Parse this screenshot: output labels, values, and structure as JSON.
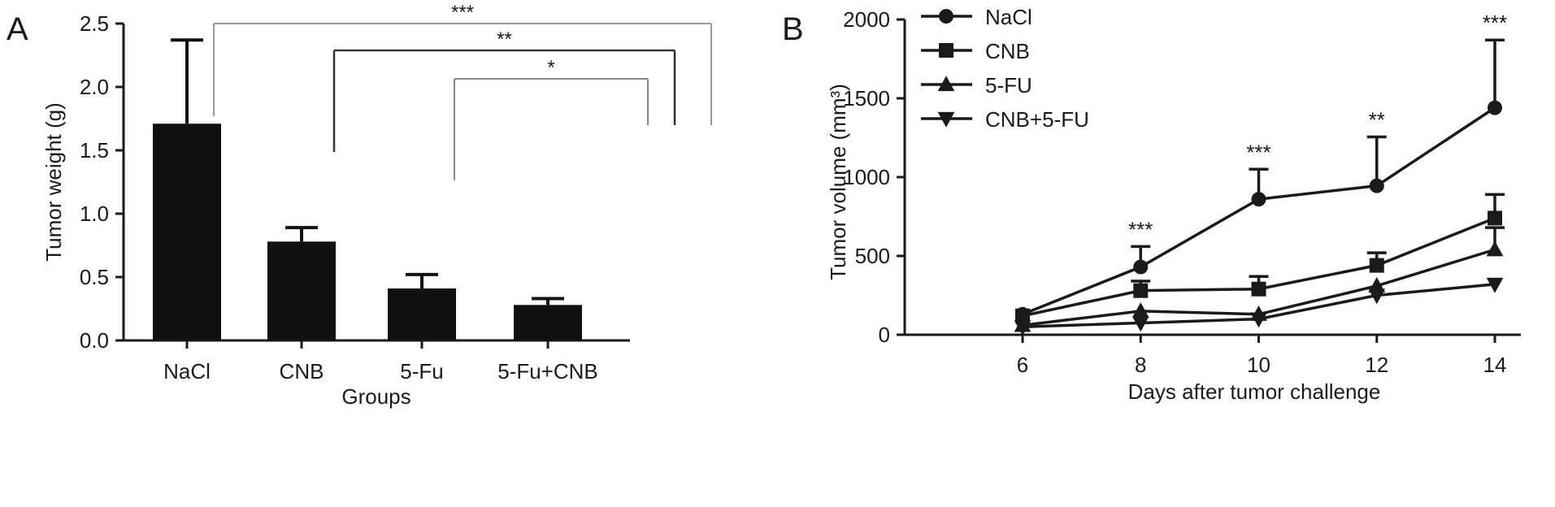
{
  "panels": {
    "a_letter": "A",
    "b_letter": "B"
  },
  "chart_data": [
    {
      "type": "bar",
      "panel": "A",
      "xlabel": "Groups",
      "ylabel": "Tumor weight (g)",
      "categories": [
        "NaCl",
        "CNB",
        "5-Fu",
        "5-Fu+CNB"
      ],
      "values": [
        1.71,
        0.78,
        0.41,
        0.28
      ],
      "errors": [
        0.66,
        0.11,
        0.11,
        0.05
      ],
      "ylim": [
        0,
        2.5
      ],
      "yticks": [
        "0.0",
        "0.5",
        "1.0",
        "1.5",
        "2.0",
        "2.5"
      ],
      "bar_color": "#111111",
      "significance": [
        {
          "from": "NaCl",
          "to": "5-Fu+CNB",
          "label": "***"
        },
        {
          "from": "CNB",
          "to": "5-Fu+CNB",
          "label": "**"
        },
        {
          "from": "5-Fu",
          "to": "5-Fu+CNB",
          "label": "*"
        }
      ]
    },
    {
      "type": "line",
      "panel": "B",
      "xlabel": "Days after tumor challenge",
      "ylabel": "Tumor volume (mm³)",
      "x": [
        6,
        8,
        10,
        12,
        14
      ],
      "xticks": [
        "6",
        "8",
        "10",
        "12",
        "14"
      ],
      "ylim": [
        0,
        2000
      ],
      "yticks": [
        "0",
        "500",
        "1000",
        "1500",
        "2000"
      ],
      "legend_position": "top-left",
      "series": [
        {
          "name": "NaCl",
          "marker": "circle",
          "values": [
            130,
            430,
            860,
            945,
            1440
          ],
          "errors": [
            0,
            130,
            190,
            310,
            430
          ]
        },
        {
          "name": "CNB",
          "marker": "square",
          "values": [
            120,
            280,
            290,
            440,
            740
          ],
          "errors": [
            0,
            60,
            80,
            80,
            150
          ]
        },
        {
          "name": "5-FU",
          "marker": "triangle-up",
          "values": [
            60,
            150,
            130,
            310,
            540
          ],
          "errors": [
            0,
            0,
            0,
            0,
            140
          ]
        },
        {
          "name": "CNB+5-FU",
          "marker": "triangle-down",
          "values": [
            50,
            75,
            100,
            250,
            320
          ],
          "errors": [
            0,
            0,
            0,
            0,
            0
          ]
        }
      ],
      "annotations": [
        {
          "x": 8,
          "label": "***"
        },
        {
          "x": 10,
          "label": "***"
        },
        {
          "x": 12,
          "label": "**"
        },
        {
          "x": 14,
          "label": "***"
        }
      ]
    }
  ]
}
